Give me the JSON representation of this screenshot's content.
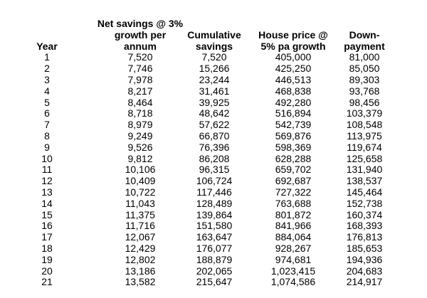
{
  "table": {
    "columns": [
      {
        "id": "year",
        "header": "Year"
      },
      {
        "id": "net-savings",
        "header": "Net savings @ 3%\ngrowth per\nannum"
      },
      {
        "id": "cumulative-savings",
        "header": "Cumulative\nsavings"
      },
      {
        "id": "house-price",
        "header": "House price @\n5% pa growth"
      },
      {
        "id": "down-payment",
        "header": "Down-\npayment"
      }
    ],
    "rows": [
      [
        "1",
        "7,520",
        "7,520",
        "405,000",
        "81,000"
      ],
      [
        "2",
        "7,746",
        "15,266",
        "425,250",
        "85,050"
      ],
      [
        "3",
        "7,978",
        "23,244",
        "446,513",
        "89,303"
      ],
      [
        "4",
        "8,217",
        "31,461",
        "468,838",
        "93,768"
      ],
      [
        "5",
        "8,464",
        "39,925",
        "492,280",
        "98,456"
      ],
      [
        "6",
        "8,718",
        "48,642",
        "516,894",
        "103,379"
      ],
      [
        "7",
        "8,979",
        "57,622",
        "542,739",
        "108,548"
      ],
      [
        "8",
        "9,249",
        "66,870",
        "569,876",
        "113,975"
      ],
      [
        "9",
        "9,526",
        "76,396",
        "598,369",
        "119,674"
      ],
      [
        "10",
        "9,812",
        "86,208",
        "628,288",
        "125,658"
      ],
      [
        "11",
        "10,106",
        "96,315",
        "659,702",
        "131,940"
      ],
      [
        "12",
        "10,409",
        "106,724",
        "692,687",
        "138,537"
      ],
      [
        "13",
        "10,722",
        "117,446",
        "727,322",
        "145,464"
      ],
      [
        "14",
        "11,043",
        "128,489",
        "763,688",
        "152,738"
      ],
      [
        "15",
        "11,375",
        "139,864",
        "801,872",
        "160,374"
      ],
      [
        "16",
        "11,716",
        "151,580",
        "841,966",
        "168,393"
      ],
      [
        "17",
        "12,067",
        "163,647",
        "884,064",
        "176,813"
      ],
      [
        "18",
        "12,429",
        "176,077",
        "928,267",
        "185,653"
      ],
      [
        "19",
        "12,802",
        "188,879",
        "974,681",
        "194,936"
      ],
      [
        "20",
        "13,186",
        "202,065",
        "1,023,415",
        "204,683"
      ],
      [
        "21",
        "13,582",
        "215,647",
        "1,074,586",
        "214,917"
      ]
    ]
  }
}
